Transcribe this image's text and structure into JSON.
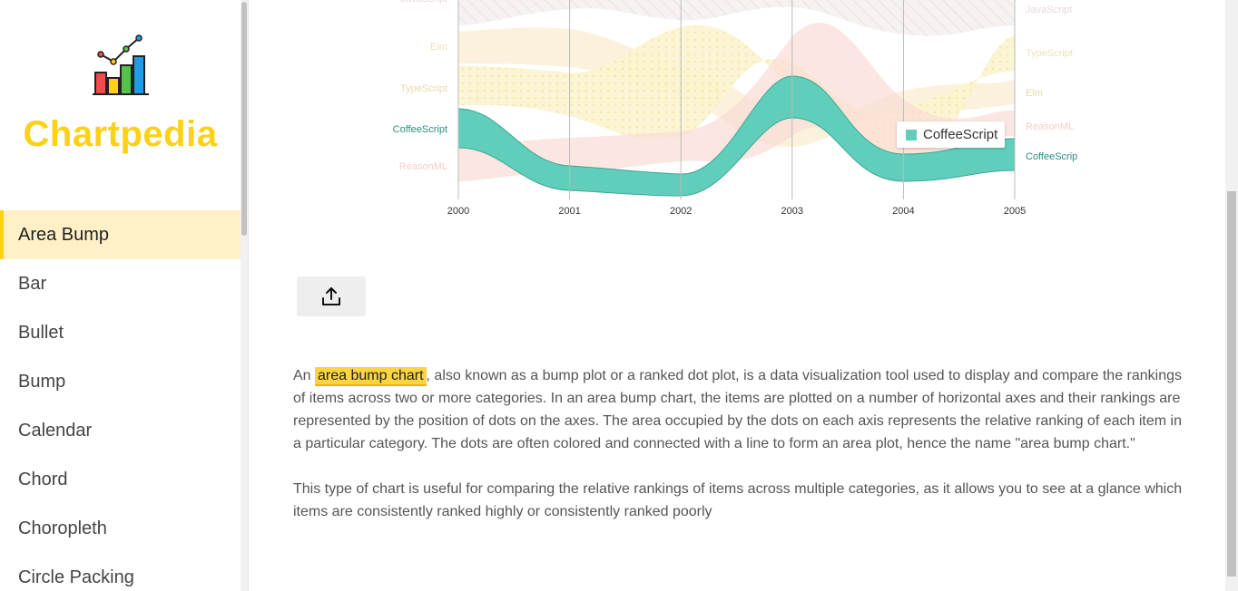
{
  "sidebar": {
    "brand": "Chartpedia",
    "items": [
      {
        "label": "Area Bump",
        "active": true
      },
      {
        "label": "Bar"
      },
      {
        "label": "Bullet"
      },
      {
        "label": "Bump"
      },
      {
        "label": "Calendar"
      },
      {
        "label": "Chord"
      },
      {
        "label": "Choropleth"
      },
      {
        "label": "Circle Packing"
      }
    ]
  },
  "chart_data": {
    "type": "area",
    "x": [
      "2000",
      "2001",
      "2002",
      "2003",
      "2004",
      "2005"
    ],
    "highlighted": "CoffeeScript",
    "legend": "CoffeeScript",
    "start_labels": [
      "JavaScript",
      "Elm",
      "TypeScript",
      "CoffeeScript",
      "ReasonML"
    ],
    "end_labels": [
      "JavaScript",
      "TypeScript",
      "Elm",
      "ReasonML",
      "CoffeeScrip"
    ],
    "colors": {
      "highlight": "#61cdbb",
      "faded_yellow": "#f1e15b",
      "faded_beige": "#e8c1a0",
      "faded_pink": "#f47560"
    }
  },
  "toolbar": {
    "export_icon": "upload-icon"
  },
  "description": {
    "intro": "An ",
    "highlight": "area bump chart",
    "p1_rest": ", also known as a bump plot or a ranked dot plot, is a data visualization tool used to display and compare the rankings of items across two or more categories. In an area bump chart, the items are plotted on a number of horizontal axes and their rankings are represented by the position of dots on the axes. The area occupied by the dots on each axis represents the relative ranking of each item in a particular category. The dots are often colored and connected with a line to form an area plot, hence the name \"area bump chart.\"",
    "p2": "This type of chart is useful for comparing the relative rankings of items across multiple categories, as it allows you to see at a glance which items are consistently ranked highly or consistently ranked poorly"
  }
}
